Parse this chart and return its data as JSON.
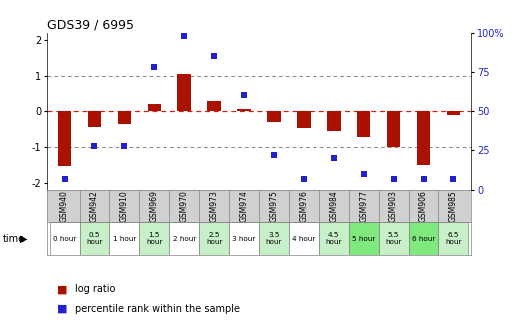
{
  "title": "GDS39 / 6995",
  "samples": [
    "GSM940",
    "GSM942",
    "GSM910",
    "GSM969",
    "GSM970",
    "GSM973",
    "GSM974",
    "GSM975",
    "GSM976",
    "GSM984",
    "GSM977",
    "GSM903",
    "GSM906",
    "GSM985"
  ],
  "time_labels": [
    "0 hour",
    "0.5\nhour",
    "1 hour",
    "1.5\nhour",
    "2 hour",
    "2.5\nhour",
    "3 hour",
    "3.5\nhour",
    "4 hour",
    "4.5\nhour",
    "5 hour",
    "5.5\nhour",
    "6 hour",
    "6.5\nhour"
  ],
  "log_ratio": [
    -1.55,
    -0.45,
    -0.35,
    0.2,
    1.05,
    0.28,
    0.05,
    -0.3,
    -0.48,
    -0.55,
    -0.72,
    -1.0,
    -1.5,
    -0.1
  ],
  "percentile": [
    7,
    28,
    28,
    78,
    98,
    85,
    60,
    22,
    7,
    20,
    10,
    7,
    7,
    7
  ],
  "time_colors": [
    "#ffffff",
    "#c8f0c8",
    "#ffffff",
    "#c8f0c8",
    "#ffffff",
    "#c8f0c8",
    "#ffffff",
    "#c8f0c8",
    "#ffffff",
    "#c8f0c8",
    "#7fe87f",
    "#c8f0c8",
    "#7fe87f",
    "#c8f0c8"
  ],
  "bar_color": "#aa1100",
  "dot_color": "#2222cc",
  "zero_line_color": "#cc2222",
  "dotted_line_color": "#888888",
  "ylim_left": [
    -2.2,
    2.2
  ],
  "ylim_right": [
    -2.2,
    2.2
  ],
  "pct_ylim": [
    0,
    110
  ],
  "yticks_left": [
    -2,
    -1,
    0,
    1,
    2
  ],
  "yticks_right_pct": [
    0,
    25,
    50,
    75,
    100
  ],
  "bg_color": "#ffffff",
  "sample_row_bg": "#d0d0d0",
  "grid_color": "#cccccc"
}
